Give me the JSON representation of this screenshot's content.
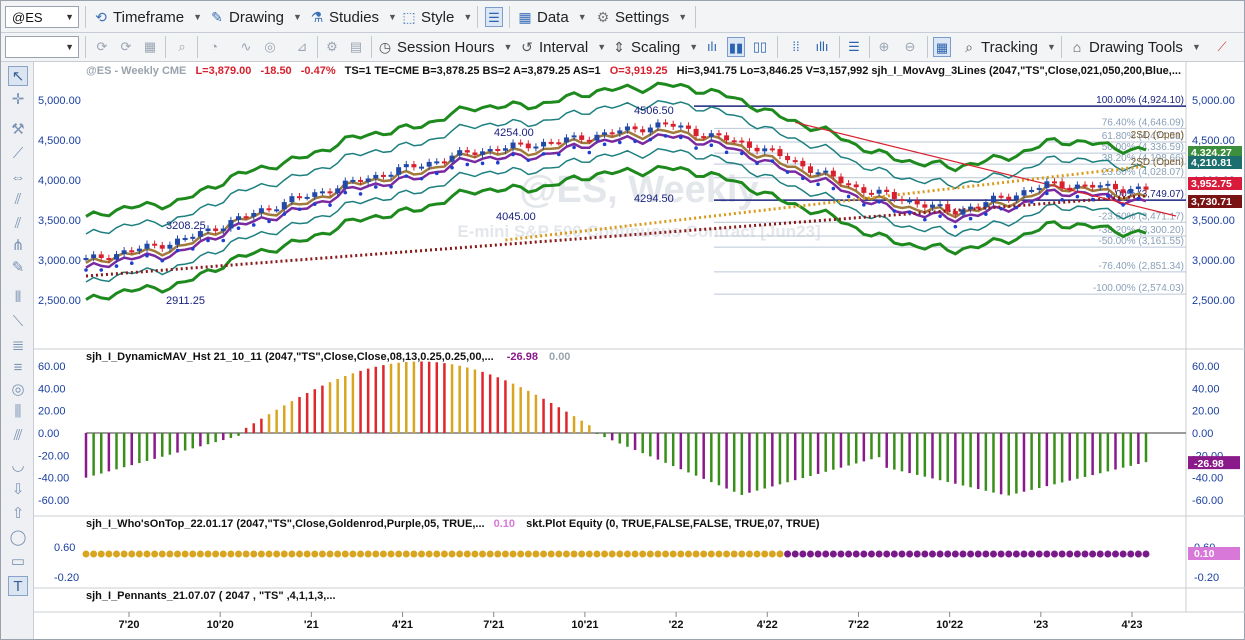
{
  "toolbar1": {
    "symbol": "@ES",
    "timeframe": "Timeframe",
    "drawing": "Drawing",
    "studies": "Studies",
    "style": "Style",
    "data": "Data",
    "settings": "Settings"
  },
  "toolbar2": {
    "session_hours": "Session Hours",
    "interval": "Interval",
    "scaling": "Scaling",
    "tracking": "Tracking",
    "drawing_tools": "Drawing Tools"
  },
  "header": {
    "title": "@ES - Weekly  CME",
    "last": "L=3,879.00",
    "change": "-18.50",
    "pct": "-0.47%",
    "rest1": "TS=1  TE=CME  B=3,878.25  BS=2  A=3,879.25  AS=1",
    "open": "O=3,919.25",
    "rest2": "Hi=3,941.75  Lo=3,846.25  V=3,157,992  sjh_I_MovAvg_3Lines (2047,\"TS\",Close,021,050,200,Blue,..."
  },
  "watermark": {
    "line1": "@ES, Weekly",
    "line2": "E-mini S&P 500 Continuous Contract [Jun23]"
  },
  "price_axis": [
    "5,000.00",
    "4,500.00",
    "4,000.00",
    "3,500.00",
    "3,000.00",
    "2,500.00"
  ],
  "price_tags": [
    {
      "text": "4,324.27",
      "color": "#3d8f3d"
    },
    {
      "text": "4,210.81",
      "color": "#1d6e6e"
    },
    {
      "text": "3,952.75",
      "color": "#d81b3a"
    },
    {
      "text": "3,730.71",
      "color": "#7a1414"
    }
  ],
  "x_axis": [
    "7'20",
    "10'20",
    "'21",
    "4'21",
    "7'21",
    "10'21",
    "'22",
    "4'22",
    "7'22",
    "10'22",
    "'23",
    "4'23"
  ],
  "annotations": {
    "hi_2021": "4506.50",
    "mid1": "4254.00",
    "mid2": "4045.00",
    "low1": "4294.50",
    "a2020_hi": "3208.25",
    "a2020_lo": "2911.25"
  },
  "fib_levels": [
    {
      "label": "100.00% (4,924.10)",
      "value": 4924.1
    },
    {
      "label": "76.40% (4,646.09)",
      "value": 4646.09
    },
    {
      "label": "61.80% (4,474.51)",
      "value": 4474.51
    },
    {
      "label": "50.00% (4,336.59)",
      "value": 4336.59
    },
    {
      "label": "38.20% (4,198.66)",
      "value": 4198.66
    },
    {
      "label": "23.60% (4,028.07)",
      "value": 4028.07
    },
    {
      "label": "0.00% (3,749.07)",
      "value": 3749.07
    },
    {
      "label": "-23.60% (3,471.17)",
      "value": 3471.17
    },
    {
      "label": "-38.20% (3,300.20)",
      "value": 3300.2
    },
    {
      "label": "-50.00% (3,161.55)",
      "value": 3161.55
    },
    {
      "label": "-76.40% (2,851.34)",
      "value": 2851.34
    },
    {
      "label": "-100.00% (2,574.03)",
      "value": 2574.03
    }
  ],
  "sd_labels": [
    "2SD (Open)",
    "2SD (Open)"
  ],
  "panel2": {
    "title": "sjh_I_DynamicMAV_Hst 21_10_11 (2047,\"TS\",Close,Close,08,13,0.25,0.25,00,...",
    "v1": "-26.98",
    "v2": "0.00",
    "axis": [
      "60.00",
      "40.00",
      "20.00",
      "0.00",
      "-20.00",
      "-40.00",
      "-60.00"
    ],
    "tag": "-26.98"
  },
  "panel3": {
    "title": "sjh_I_Who'sOnTop_22.01.17 (2047,\"TS\",Close,Goldenrod,Purple,05, TRUE,...",
    "v1": "0.10",
    "title2": "skt.Plot Equity (0, TRUE,FALSE,FALSE, TRUE,07, TRUE)",
    "axis": [
      "0.60",
      "-0.20"
    ],
    "tag": "0.10"
  },
  "panel4": {
    "title": "sjh_I_Pennants_21.07.07 ( 2047 , \"TS\" ,4,1,1,3,..."
  },
  "colors": {
    "up": "#2349a8",
    "down": "#d8202e",
    "hist_gold": "#d9a520",
    "hist_red": "#e0262a",
    "hist_green": "#3a8f1a",
    "hist_purple": "#8a1a8a"
  },
  "chart_data": {
    "type": "line",
    "title": "@ES - Weekly",
    "xlabel": "",
    "ylabel": "",
    "ylim": [
      2300,
      5200
    ],
    "x": [
      "2020-06",
      "2020-09",
      "2021-01",
      "2021-04",
      "2021-07",
      "2021-10",
      "2022-01",
      "2022-04",
      "2022-07",
      "2022-10",
      "2023-01",
      "2023-03"
    ],
    "series": [
      {
        "values": [
          3000,
          3250,
          3700,
          4050,
          4350,
          4500,
          4700,
          4400,
          3900,
          3600,
          3950,
          3880
        ]
      }
    ]
  }
}
